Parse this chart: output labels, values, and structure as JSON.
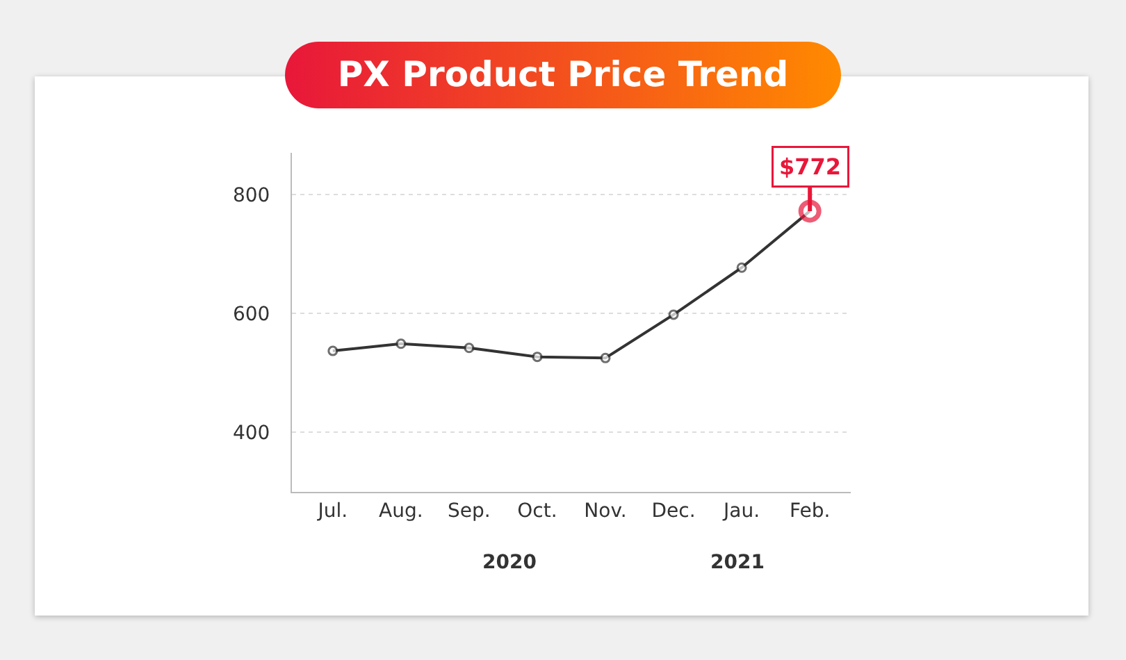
{
  "chart_data": {
    "type": "line",
    "title": "PX Product Price Trend",
    "categories": [
      "Jul.",
      "Aug.",
      "Sep.",
      "Oct.",
      "Nov.",
      "Dec.",
      "Jau.",
      "Feb."
    ],
    "series": [
      {
        "color": "#333333",
        "values": [
          537,
          549,
          542,
          527,
          525,
          598,
          677,
          772
        ],
        "value_labels": [
          null,
          null,
          null,
          null,
          null,
          null,
          null,
          "$772"
        ],
        "colors": [
          "#333333",
          "#333333",
          "#333333",
          "#333333",
          "#333333",
          "#333333",
          "#333333",
          "#e8173a"
        ]
      }
    ],
    "annotations": [
      "2020",
      "2021"
    ],
    "ylim": [
      300,
      870
    ],
    "yticks": [
      400,
      600,
      800
    ],
    "grid": "y",
    "marker": "circle",
    "line_style": "solid"
  }
}
